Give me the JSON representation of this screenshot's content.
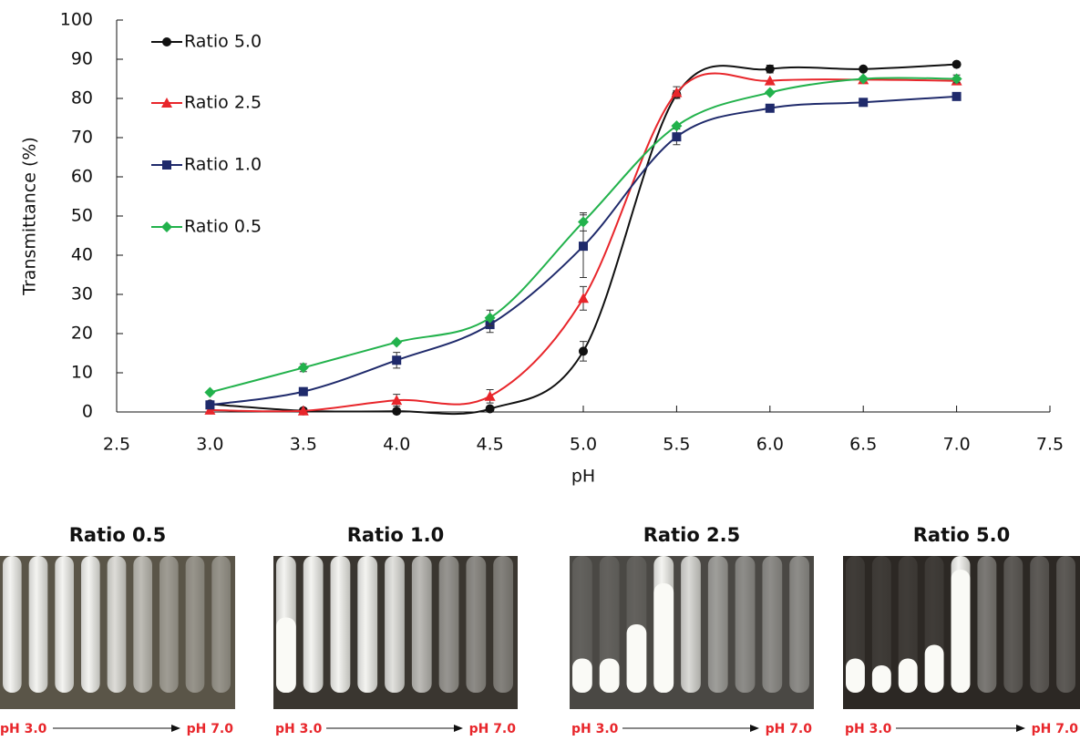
{
  "chart_data": {
    "type": "line",
    "xlabel": "pH",
    "ylabel": "Transmittance (%)",
    "x": [
      3.0,
      3.5,
      4.0,
      4.5,
      5.0,
      5.5,
      6.0,
      6.5,
      7.0
    ],
    "series": [
      {
        "name": "Ratio 5.0",
        "color": "#111111",
        "marker": "circle",
        "values": [
          2,
          0.3,
          0.2,
          0.8,
          15.5,
          81,
          87.5,
          87.5,
          88.7
        ],
        "errors": [
          null,
          null,
          null,
          null,
          2.5,
          1,
          1,
          null,
          null
        ]
      },
      {
        "name": "Ratio 2.5",
        "color": "#e8262b",
        "marker": "triangle",
        "values": [
          0.5,
          0.3,
          3,
          4,
          29,
          81.5,
          84.5,
          84.8,
          84.5
        ],
        "errors": [
          null,
          null,
          1.5,
          1.7,
          3,
          1.5,
          null,
          null,
          null
        ]
      },
      {
        "name": "Ratio 1.0",
        "color": "#1f2a6b",
        "marker": "square",
        "values": [
          1.8,
          5.2,
          13.2,
          22.3,
          42.3,
          70.2,
          77.5,
          79,
          80.5
        ],
        "errors": [
          null,
          null,
          2,
          2,
          8,
          2,
          null,
          null,
          null
        ]
      },
      {
        "name": "Ratio 0.5",
        "color": "#22b24c",
        "marker": "diamond",
        "values": [
          5,
          11.3,
          17.8,
          24,
          48.5,
          73,
          81.5,
          85,
          85
        ],
        "errors": [
          null,
          1,
          null,
          2,
          2.3,
          null,
          null,
          null,
          1
        ]
      }
    ],
    "xlim": [
      2.5,
      7.5
    ],
    "xticks": [
      {
        "value": 2.5,
        "label": "2.5"
      },
      {
        "value": 3,
        "label": "3.0"
      },
      {
        "value": 3.5,
        "label": "3.5"
      },
      {
        "value": 4,
        "label": "4.0"
      },
      {
        "value": 4.5,
        "label": "4.5"
      },
      {
        "value": 5,
        "label": "5.0"
      },
      {
        "value": 5.5,
        "label": "5.5"
      },
      {
        "value": 6,
        "label": "6.0"
      },
      {
        "value": 6.5,
        "label": "6.5"
      },
      {
        "value": 7,
        "label": "7.0"
      },
      {
        "value": 7.5,
        "label": "7.5"
      }
    ],
    "ylim": [
      0,
      100
    ],
    "yticks": [
      0,
      10,
      20,
      30,
      40,
      50,
      60,
      70,
      80,
      90,
      100
    ],
    "grid": false,
    "legend": "upper left"
  },
  "panels": [
    {
      "title": "Ratio 0.5",
      "start": "pH 3.0",
      "end": "pH 7.0"
    },
    {
      "title": "Ratio 1.0",
      "start": "pH 3.0",
      "end": "pH 7.0"
    },
    {
      "title": "Ratio 2.5",
      "start": "pH 3.0",
      "end": "pH 7.0"
    },
    {
      "title": "Ratio 5.0",
      "start": "pH 3.0",
      "end": "pH 7.0"
    }
  ]
}
